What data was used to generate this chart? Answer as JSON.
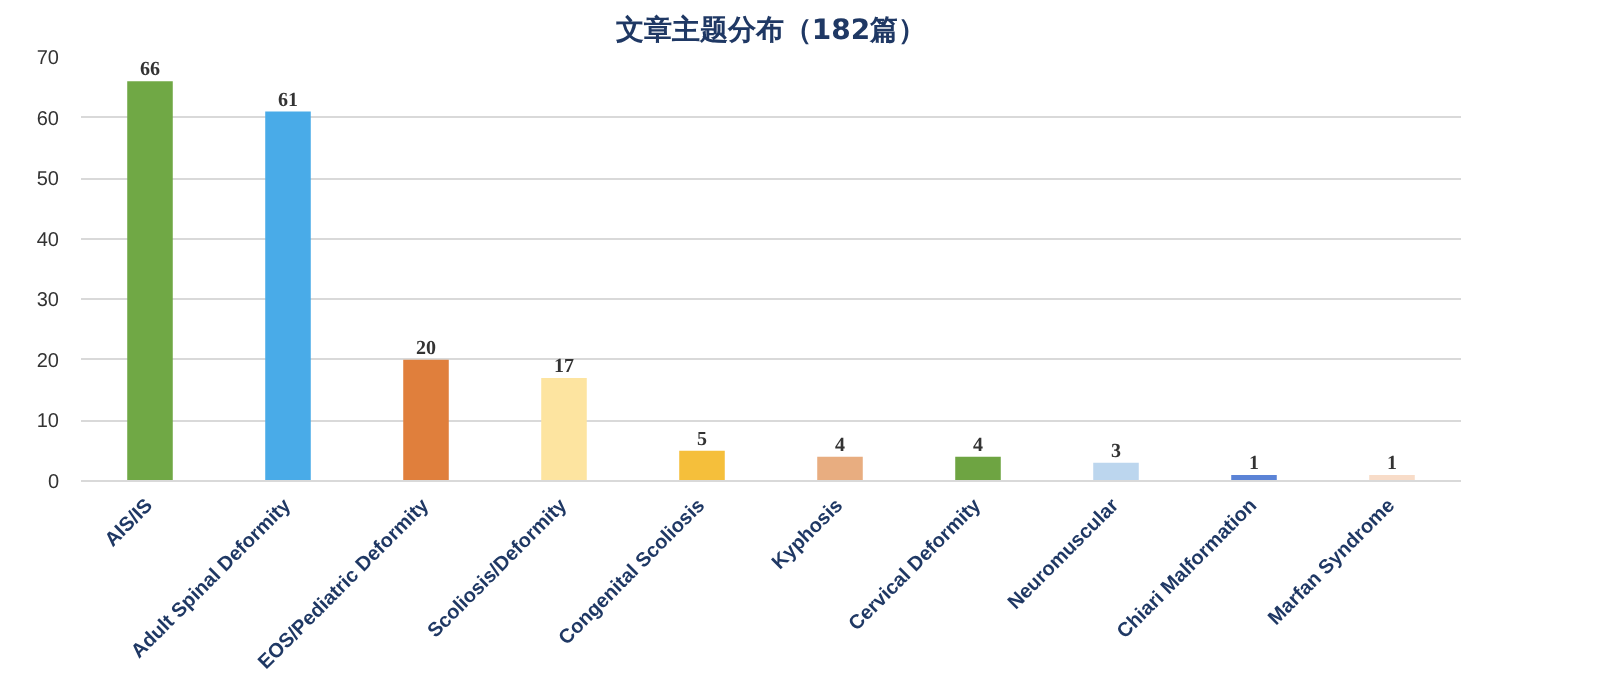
{
  "chart_data": {
    "type": "bar",
    "title": "文章主题分布（182篇）",
    "categories": [
      "AIS/IS",
      "Adult Spinal Deformity",
      "EOS/Pediatric Deformity",
      "Scoliosis/Deformity",
      "Congenital Scoliosis",
      "Kyphosis",
      "Cervical Deformity",
      "Neuromuscular",
      "Chiari Malformation",
      "Marfan Syndrome"
    ],
    "values": [
      66,
      61,
      20,
      17,
      5,
      4,
      4,
      3,
      1,
      1
    ],
    "colors": [
      "#70a845",
      "#49abe8",
      "#e07f3c",
      "#fde4a0",
      "#f5bf3b",
      "#e8ad80",
      "#6ea442",
      "#bcd6ee",
      "#5b83d6",
      "#f8dcc8"
    ],
    "ylim": [
      0,
      70
    ],
    "yticks": [
      0,
      10,
      20,
      30,
      40,
      50,
      60,
      70
    ],
    "grid": "y",
    "data_labels": true
  }
}
